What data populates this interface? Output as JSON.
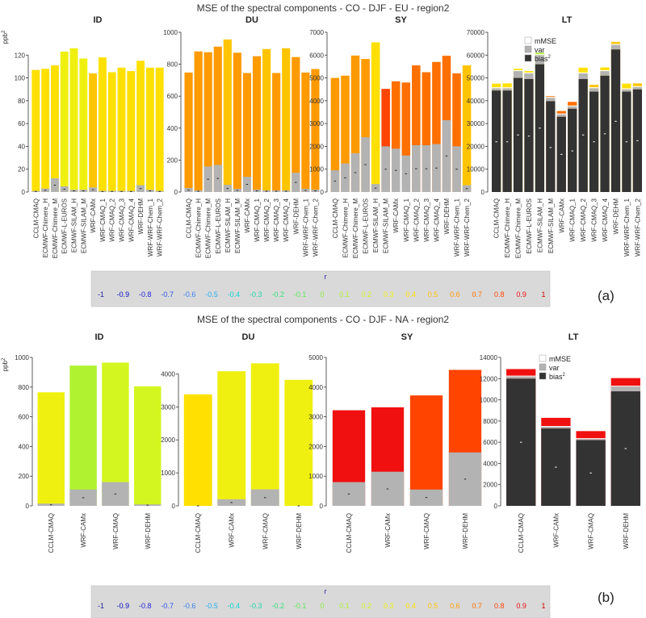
{
  "colors": {
    "mmse_fill": "#ffffff",
    "var_fill": "#b3b3b3",
    "bias_fill": "#333333",
    "r_scale": [
      "#1f1f9e",
      "#0a0ac4",
      "#2222dd",
      "#2a55e6",
      "#3a80f0",
      "#21b0f0",
      "#10d4d4",
      "#20d8a8",
      "#38e07c",
      "#5ce85c",
      "#88ee44",
      "#b0f230",
      "#d4f620",
      "#f0f010",
      "#ffe000",
      "#ffc400",
      "#ff9a00",
      "#ff7000",
      "#ff4400",
      "#f01010",
      "#d00000"
    ],
    "legend_panel": "#d9d9d9"
  },
  "r_legend": {
    "title": "r",
    "labels": [
      "-1",
      "-0.9",
      "-0.8",
      "-0.7",
      "-0.6",
      "-0.5",
      "-0.4",
      "-0.3",
      "-0.2",
      "-0.1",
      "0",
      "0.1",
      "0.2",
      "0.3",
      "0.4",
      "0.5",
      "0.6",
      "0.7",
      "0.8",
      "0.9",
      "1"
    ]
  },
  "chart_data": [
    {
      "type": "bar",
      "stacked": true,
      "title": "MSE  of the spectral components -  CO - DJF - EU - region2",
      "ylabel": "ppb2",
      "figure_label": "(a)",
      "legend_entries": [
        "mMSE",
        "var",
        "bias2"
      ],
      "categories": [
        "CCLM-CMAQ",
        "ECMWF-Chimere_H",
        "ECMWF-Chimere_M",
        "ECMWF-L-EUROS",
        "ECMWF-SILAM_H",
        "ECMWF-SILAM_M",
        "WRF-CAMx",
        "WRF-CMAQ_1",
        "WRF-CMAQ_2",
        "WRF-CMAQ_3",
        "WRF-CMAQ_4",
        "WRF-DEHM",
        "WRF-WRF-Chem_1",
        "WRF-WRF-Chem_2"
      ],
      "panels": [
        {
          "title": "ID",
          "ylim": [
            0,
            140
          ],
          "yticks": [
            0,
            20,
            40,
            60,
            80,
            100,
            120
          ],
          "totals": [
            107,
            108,
            111,
            123,
            126,
            117,
            104,
            118,
            105,
            109,
            106,
            115,
            109,
            109
          ],
          "var": [
            1,
            3,
            12,
            5,
            2,
            2,
            4,
            1,
            1,
            1,
            1,
            6,
            2,
            1
          ],
          "bias": [
            0,
            0,
            0,
            0,
            0,
            0,
            0,
            0,
            0,
            0,
            0,
            0,
            0,
            0
          ],
          "mmse_top": [
            0,
            0,
            0,
            0,
            0,
            0,
            0,
            0,
            0,
            0,
            0,
            0,
            0,
            0
          ],
          "r": [
            0.4,
            0.4,
            0.4,
            0.3,
            0.3,
            0.3,
            0.5,
            0.4,
            0.4,
            0.4,
            0.4,
            0.4,
            0.4,
            0.4
          ],
          "marks": [
            0.5,
            1.5,
            6,
            2.5,
            1,
            1,
            2,
            0.5,
            0.5,
            0.5,
            0.5,
            3,
            1,
            0.5
          ]
        },
        {
          "title": "DU",
          "ylim": [
            0,
            1000
          ],
          "yticks": [
            0,
            200,
            400,
            600,
            800,
            1000
          ],
          "totals": [
            748,
            880,
            875,
            910,
            955,
            872,
            745,
            850,
            895,
            745,
            900,
            845,
            748,
            770
          ],
          "var": [
            25,
            10,
            160,
            170,
            45,
            20,
            95,
            15,
            10,
            10,
            10,
            120,
            20,
            15
          ],
          "bias": [
            0,
            0,
            0,
            0,
            0,
            0,
            0,
            0,
            0,
            0,
            0,
            0,
            0,
            0
          ],
          "mmse_top": [
            0,
            0,
            0,
            0,
            0,
            0,
            0,
            0,
            0,
            0,
            0,
            0,
            0,
            0
          ],
          "r": [
            0.6,
            0.6,
            0.6,
            0.6,
            0.5,
            0.6,
            0.6,
            0.6,
            0.5,
            0.6,
            0.5,
            0.6,
            0.6,
            0.6
          ],
          "marks": [
            12,
            5,
            80,
            85,
            22,
            10,
            48,
            7,
            5,
            5,
            5,
            60,
            10,
            7
          ]
        },
        {
          "title": "SY",
          "ylim": [
            0,
            7000
          ],
          "yticks": [
            0,
            1000,
            2000,
            3000,
            4000,
            5000,
            6000,
            7000
          ],
          "totals": [
            5000,
            5100,
            5980,
            5830,
            6560,
            4520,
            4850,
            4800,
            5550,
            5250,
            5700,
            5970,
            5200,
            5550
          ],
          "var": [
            950,
            1250,
            1700,
            2400,
            350,
            2000,
            1900,
            1600,
            2050,
            2050,
            2100,
            3150,
            2000,
            300
          ],
          "bias": [
            0,
            0,
            0,
            0,
            0,
            0,
            0,
            0,
            0,
            0,
            0,
            0,
            0,
            0
          ],
          "mmse_top": [
            0,
            0,
            0,
            0,
            0,
            0,
            0,
            0,
            0,
            0,
            0,
            0,
            0,
            0
          ],
          "r": [
            0.6,
            0.6,
            0.6,
            0.6,
            0.4,
            0.8,
            0.7,
            0.7,
            0.7,
            0.7,
            0.7,
            0.7,
            0.7,
            0.5
          ],
          "marks": [
            480,
            620,
            850,
            1200,
            170,
            1000,
            950,
            800,
            1020,
            1020,
            1050,
            1580,
            1000,
            150
          ]
        },
        {
          "title": "LT",
          "ylim": [
            0,
            70000
          ],
          "yticks": [
            0,
            10000,
            20000,
            30000,
            40000,
            50000,
            60000,
            70000
          ],
          "totals": [
            47500,
            47600,
            54000,
            53000,
            61000,
            42000,
            35500,
            39500,
            54500,
            47000,
            54600,
            65800,
            47500,
            47600
          ],
          "var": [
            1000,
            1000,
            3000,
            2500,
            4000,
            1500,
            1000,
            1000,
            2500,
            1500,
            2000,
            2000,
            1000,
            1000
          ],
          "bias": [
            44500,
            44500,
            50000,
            49500,
            56000,
            39800,
            33000,
            36500,
            49500,
            44000,
            51000,
            62500,
            44000,
            45000
          ],
          "mmse_top": [
            45500,
            45500,
            53000,
            52000,
            60000,
            41300,
            34000,
            37500,
            52000,
            45500,
            53000,
            64500,
            45000,
            46000
          ],
          "r": [
            0.4,
            0.4,
            0.4,
            0.4,
            0.1,
            0.7,
            0.7,
            0.7,
            0.4,
            0.5,
            0.4,
            0.5,
            0.4,
            0.5
          ],
          "marks": [
            22000,
            22000,
            25000,
            24500,
            28000,
            19500,
            16500,
            18000,
            25000,
            22000,
            25500,
            31000,
            22000,
            22500
          ]
        }
      ]
    },
    {
      "type": "bar",
      "stacked": true,
      "title": "MSE  of the spectral components -  CO - DJF - NA - region2",
      "ylabel": "ppb2",
      "figure_label": "(b)",
      "legend_entries": [
        "mMSE",
        "var",
        "bias2"
      ],
      "categories": [
        "CCLM-CMAQ",
        "WRF-CAMx",
        "WRF-CMAQ",
        "WRF-DEHM"
      ],
      "panels": [
        {
          "title": "ID",
          "ylim": [
            0,
            1000
          ],
          "yticks": [
            0,
            200,
            400,
            600,
            800,
            1000
          ],
          "totals": [
            765,
            945,
            965,
            805
          ],
          "var": [
            15,
            110,
            160,
            10
          ],
          "bias": [
            0,
            0,
            0,
            0
          ],
          "mmse_top": [
            0,
            0,
            0,
            0
          ],
          "r": [
            0.3,
            0.1,
            0.2,
            0.2
          ],
          "marks": [
            7,
            55,
            80,
            5
          ]
        },
        {
          "title": "DU",
          "ylim": [
            0,
            4500
          ],
          "yticks": [
            0,
            1000,
            2000,
            3000,
            4000
          ],
          "totals": [
            3380,
            4080,
            4320,
            3820
          ],
          "var": [
            0,
            200,
            500,
            0
          ],
          "bias": [
            0,
            0,
            0,
            0
          ],
          "mmse_top": [
            0,
            0,
            0,
            0
          ],
          "r": [
            0.4,
            0.3,
            0.3,
            0.3
          ],
          "marks": [
            0,
            100,
            250,
            0
          ]
        },
        {
          "title": "SY",
          "ylim": [
            0,
            5000
          ],
          "yticks": [
            0,
            1000,
            2000,
            3000,
            4000,
            5000
          ],
          "totals": [
            3220,
            3320,
            3720,
            4580
          ],
          "var": [
            800,
            1150,
            550,
            1800
          ],
          "bias": [
            0,
            0,
            0,
            0
          ],
          "mmse_top": [
            0,
            0,
            0,
            0
          ],
          "r": [
            0.9,
            0.9,
            0.8,
            0.8
          ],
          "marks": [
            400,
            570,
            280,
            900
          ]
        },
        {
          "title": "LT",
          "ylim": [
            0,
            14000
          ],
          "yticks": [
            0,
            2000,
            4000,
            6000,
            8000,
            10000,
            12000,
            14000
          ],
          "totals": [
            12900,
            8300,
            7050,
            12050
          ],
          "var": [
            200,
            150,
            100,
            450
          ],
          "bias": [
            12000,
            7300,
            6200,
            10800
          ],
          "mmse_top": [
            12200,
            7450,
            6300,
            11250
          ],
          "r": [
            0.9,
            0.9,
            0.9,
            0.9
          ],
          "marks": [
            6000,
            3650,
            3100,
            5400
          ]
        }
      ]
    }
  ]
}
